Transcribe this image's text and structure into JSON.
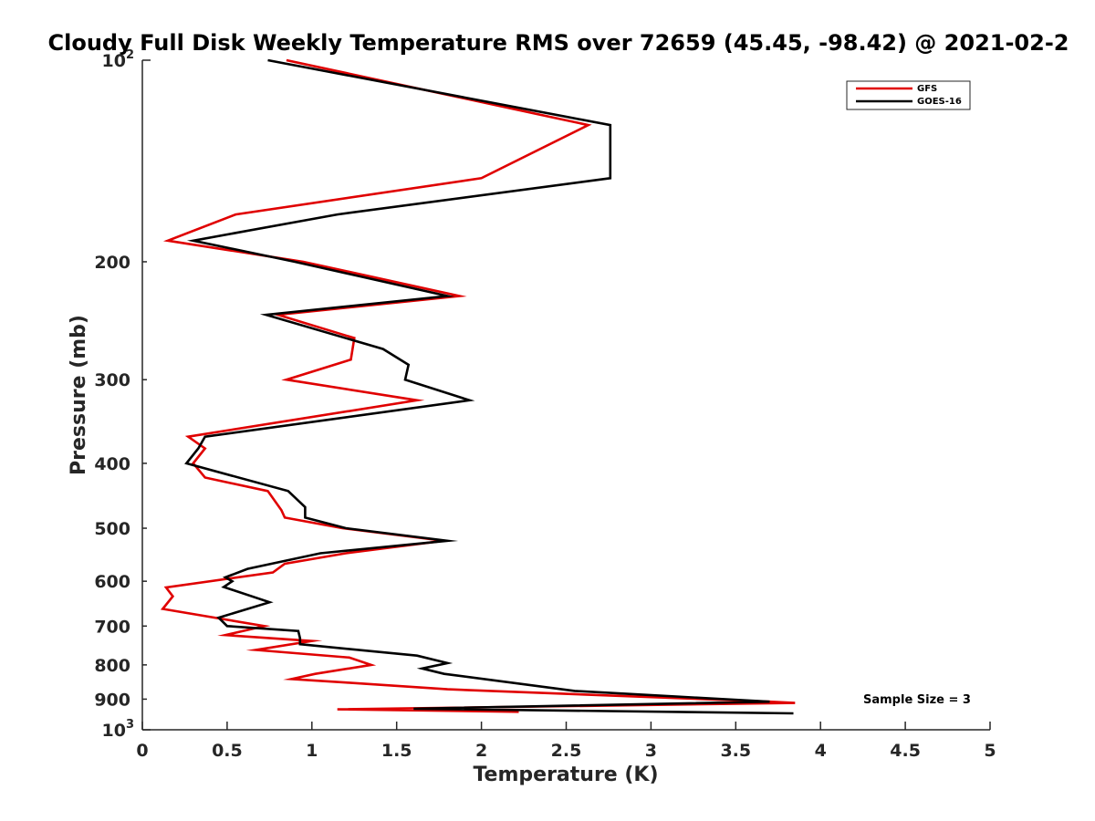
{
  "chart_data": {
    "type": "line",
    "title": "Cloudy Full Disk Weekly Temperature RMS over 72659 (45.45, -98.42) @ 2021-02-2",
    "xlabel": "Temperature (K)",
    "ylabel": "Pressure (mb)",
    "xlim": [
      0,
      5
    ],
    "ylim": [
      100,
      1000
    ],
    "y_scale": "log",
    "y_reversed": true,
    "x_ticks": [
      {
        "value": 0,
        "label": "0"
      },
      {
        "value": 0.5,
        "label": "0.5"
      },
      {
        "value": 1,
        "label": "1"
      },
      {
        "value": 1.5,
        "label": "1.5"
      },
      {
        "value": 2,
        "label": "2"
      },
      {
        "value": 2.5,
        "label": "2.5"
      },
      {
        "value": 3,
        "label": "3"
      },
      {
        "value": 3.5,
        "label": "3.5"
      },
      {
        "value": 4,
        "label": "4"
      },
      {
        "value": 4.5,
        "label": "4.5"
      },
      {
        "value": 5,
        "label": "5"
      }
    ],
    "y_ticks_major": [
      {
        "value": 100,
        "base": "10",
        "exp": "2"
      },
      {
        "value": 1000,
        "base": "10",
        "exp": "3"
      }
    ],
    "y_ticks_minor": [
      {
        "value": 200,
        "label": "200"
      },
      {
        "value": 300,
        "label": "300"
      },
      {
        "value": 400,
        "label": "400"
      },
      {
        "value": 500,
        "label": "500"
      },
      {
        "value": 600,
        "label": "600"
      },
      {
        "value": 700,
        "label": "700"
      },
      {
        "value": 800,
        "label": "800"
      },
      {
        "value": 900,
        "label": "900"
      }
    ],
    "grid": false,
    "legend_position": "top-right",
    "series": [
      {
        "name": "GFS",
        "color": "#e00000",
        "points": [
          [
            0.85,
            100
          ],
          [
            2.63,
            125
          ],
          [
            2.0,
            150
          ],
          [
            0.55,
            170
          ],
          [
            0.15,
            186
          ],
          [
            0.95,
            200
          ],
          [
            1.87,
            225
          ],
          [
            0.8,
            240
          ],
          [
            1.25,
            260
          ],
          [
            1.23,
            280
          ],
          [
            0.85,
            300
          ],
          [
            1.62,
            322
          ],
          [
            0.27,
            365
          ],
          [
            0.37,
            380
          ],
          [
            0.3,
            400
          ],
          [
            0.37,
            420
          ],
          [
            0.74,
            440
          ],
          [
            0.82,
            470
          ],
          [
            0.84,
            482
          ],
          [
            1.18,
            500
          ],
          [
            1.78,
            522
          ],
          [
            1.2,
            545
          ],
          [
            0.84,
            565
          ],
          [
            0.77,
            582
          ],
          [
            0.14,
            613
          ],
          [
            0.18,
            632
          ],
          [
            0.12,
            660
          ],
          [
            0.72,
            700
          ],
          [
            0.49,
            722
          ],
          [
            1.0,
            737
          ],
          [
            0.67,
            760
          ],
          [
            1.22,
            780
          ],
          [
            1.35,
            800
          ],
          [
            1.02,
            825
          ],
          [
            0.88,
            840
          ],
          [
            1.2,
            850
          ],
          [
            1.8,
            870
          ],
          [
            3.7,
            908
          ],
          [
            3.85,
            912
          ],
          [
            1.15,
            932
          ],
          [
            2.22,
            940
          ]
        ]
      },
      {
        "name": "GOES-16",
        "color": "#000000",
        "points": [
          [
            0.74,
            100
          ],
          [
            2.76,
            125
          ],
          [
            2.76,
            150
          ],
          [
            1.15,
            170
          ],
          [
            0.3,
            186
          ],
          [
            0.9,
            200
          ],
          [
            1.8,
            225
          ],
          [
            0.73,
            240
          ],
          [
            1.42,
            270
          ],
          [
            1.57,
            285
          ],
          [
            1.55,
            300
          ],
          [
            1.93,
            322
          ],
          [
            0.37,
            365
          ],
          [
            0.33,
            380
          ],
          [
            0.26,
            400
          ],
          [
            0.86,
            440
          ],
          [
            0.96,
            465
          ],
          [
            0.96,
            482
          ],
          [
            1.2,
            500
          ],
          [
            1.8,
            522
          ],
          [
            1.05,
            545
          ],
          [
            0.62,
            575
          ],
          [
            0.49,
            592
          ],
          [
            0.53,
            600
          ],
          [
            0.48,
            612
          ],
          [
            0.75,
            645
          ],
          [
            0.45,
            680
          ],
          [
            0.5,
            700
          ],
          [
            0.92,
            712
          ],
          [
            0.93,
            730
          ],
          [
            0.93,
            745
          ],
          [
            1.62,
            775
          ],
          [
            1.8,
            795
          ],
          [
            1.65,
            810
          ],
          [
            1.78,
            825
          ],
          [
            2.55,
            875
          ],
          [
            3.7,
            908
          ],
          [
            1.6,
            930
          ],
          [
            3.84,
            945
          ]
        ]
      }
    ],
    "annotations": [
      {
        "text": "Sample Size = 3"
      }
    ]
  }
}
